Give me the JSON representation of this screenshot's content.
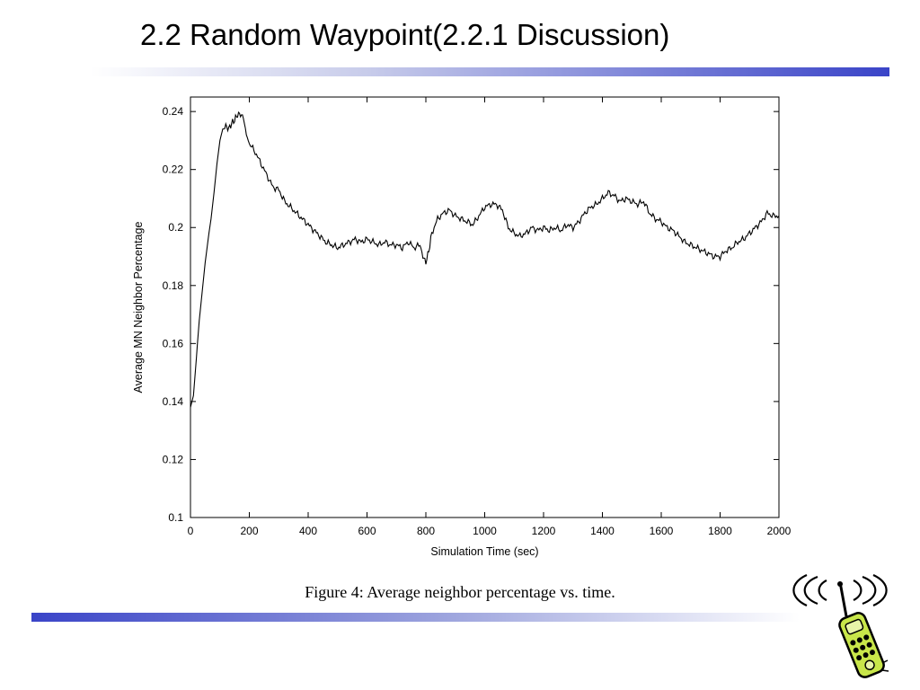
{
  "slide": {
    "title": "2.2 Random Waypoint(2.2.1 Discussion)",
    "caption": "Figure 4: Average neighbor percentage vs. time."
  },
  "clipart": {
    "icon": "cellphone-icon",
    "colors": {
      "body": "#c8e64a",
      "outline": "#000000"
    }
  },
  "chart_data": {
    "type": "line",
    "xlabel": "Simulation Time (sec)",
    "ylabel": "Average MN Neighbor Percentage",
    "xlim": [
      0,
      2000
    ],
    "ylim": [
      0.1,
      0.245
    ],
    "xticks": [
      0,
      200,
      400,
      600,
      800,
      1000,
      1200,
      1400,
      1600,
      1800,
      2000
    ],
    "yticks": [
      0.1,
      0.12,
      0.14,
      0.16,
      0.18,
      0.2,
      0.22,
      0.24
    ],
    "xtick_labels": [
      "0",
      "200",
      "400",
      "600",
      "800",
      "1000",
      "1200",
      "1400",
      "1600",
      "1800",
      "2000"
    ],
    "ytick_labels": [
      "0.1",
      "0.12",
      "0.14",
      "0.16",
      "0.18",
      "0.2",
      "0.22",
      "0.24"
    ],
    "grid": false,
    "series": [
      {
        "color": "#000000",
        "x": [
          0,
          10,
          20,
          30,
          40,
          50,
          60,
          70,
          80,
          90,
          100,
          110,
          120,
          130,
          140,
          150,
          160,
          170,
          180,
          190,
          200,
          220,
          240,
          260,
          280,
          300,
          320,
          340,
          360,
          380,
          400,
          420,
          440,
          460,
          480,
          500,
          520,
          540,
          560,
          580,
          600,
          620,
          640,
          660,
          680,
          700,
          720,
          740,
          760,
          780,
          790,
          800,
          810,
          820,
          840,
          860,
          880,
          900,
          920,
          940,
          960,
          980,
          1000,
          1020,
          1040,
          1060,
          1080,
          1100,
          1120,
          1140,
          1160,
          1180,
          1200,
          1220,
          1240,
          1260,
          1280,
          1300,
          1320,
          1340,
          1360,
          1380,
          1400,
          1420,
          1440,
          1460,
          1480,
          1500,
          1520,
          1540,
          1560,
          1580,
          1600,
          1620,
          1640,
          1660,
          1680,
          1700,
          1720,
          1740,
          1760,
          1780,
          1800,
          1820,
          1840,
          1860,
          1880,
          1900,
          1920,
          1940,
          1960,
          1980,
          2000
        ],
        "y": [
          0.138,
          0.142,
          0.155,
          0.168,
          0.178,
          0.188,
          0.196,
          0.203,
          0.212,
          0.222,
          0.23,
          0.234,
          0.235,
          0.234,
          0.236,
          0.237,
          0.239,
          0.239,
          0.238,
          0.232,
          0.229,
          0.226,
          0.222,
          0.218,
          0.214,
          0.213,
          0.209,
          0.207,
          0.205,
          0.203,
          0.201,
          0.199,
          0.197,
          0.195,
          0.194,
          0.193,
          0.194,
          0.195,
          0.196,
          0.195,
          0.196,
          0.195,
          0.194,
          0.195,
          0.194,
          0.194,
          0.193,
          0.195,
          0.193,
          0.194,
          0.19,
          0.188,
          0.192,
          0.198,
          0.203,
          0.205,
          0.206,
          0.204,
          0.203,
          0.202,
          0.201,
          0.204,
          0.207,
          0.208,
          0.208,
          0.206,
          0.2,
          0.198,
          0.197,
          0.198,
          0.2,
          0.199,
          0.2,
          0.199,
          0.2,
          0.199,
          0.201,
          0.2,
          0.202,
          0.205,
          0.207,
          0.208,
          0.21,
          0.212,
          0.211,
          0.209,
          0.21,
          0.209,
          0.208,
          0.209,
          0.205,
          0.203,
          0.202,
          0.2,
          0.199,
          0.197,
          0.195,
          0.194,
          0.193,
          0.192,
          0.191,
          0.19,
          0.19,
          0.192,
          0.193,
          0.195,
          0.196,
          0.198,
          0.2,
          0.202,
          0.205,
          0.204,
          0.204
        ]
      }
    ]
  }
}
